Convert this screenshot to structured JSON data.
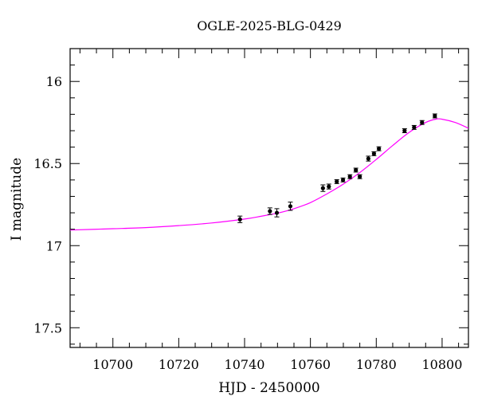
{
  "chart_data": {
    "type": "scatter",
    "title": "OGLE-2025-BLG-0429",
    "xlabel": "HJD - 2450000",
    "ylabel": "I magnitude",
    "xlim": [
      10687,
      10808
    ],
    "ylim": [
      17.62,
      15.8
    ],
    "y_inverted": true,
    "xticks": [
      10700,
      10720,
      10740,
      10760,
      10780,
      10800
    ],
    "xtick_labels": [
      "10700",
      "10720",
      "10740",
      "10760",
      "10780",
      "10800"
    ],
    "yticks": [
      16,
      16.5,
      17,
      17.5
    ],
    "ytick_labels": [
      "16",
      "16.5",
      "17",
      "17.5"
    ],
    "grid": false,
    "colors": {
      "points": "#000000",
      "model": "#ff00ff"
    },
    "series": [
      {
        "kind": "points",
        "x": [
          10738.6,
          10747.7,
          10749.8,
          10753.9,
          10763.8,
          10765.6,
          10768.0,
          10769.9,
          10772.0,
          10773.8,
          10775.0,
          10777.6,
          10779.3,
          10780.8,
          10788.6,
          10791.5,
          10793.9,
          10797.8
        ],
        "y": [
          16.84,
          16.79,
          16.8,
          16.76,
          16.65,
          16.64,
          16.61,
          16.6,
          16.58,
          16.54,
          16.58,
          16.47,
          16.44,
          16.41,
          16.3,
          16.28,
          16.25,
          16.21
        ],
        "err": [
          0.02,
          0.02,
          0.025,
          0.025,
          0.02,
          0.015,
          0.012,
          0.012,
          0.012,
          0.012,
          0.012,
          0.015,
          0.012,
          0.012,
          0.012,
          0.012,
          0.012,
          0.012
        ]
      },
      {
        "kind": "line",
        "x": [
          10687,
          10700,
          10710,
          10720,
          10730,
          10740,
          10745,
          10750,
          10755,
          10760,
          10765,
          10770,
          10775,
          10780,
          10785,
          10790,
          10795,
          10798,
          10800,
          10804,
          10808
        ],
        "y": [
          16.905,
          16.897,
          16.89,
          16.878,
          16.862,
          16.838,
          16.821,
          16.802,
          16.775,
          16.738,
          16.685,
          16.625,
          16.555,
          16.475,
          16.39,
          16.31,
          16.25,
          16.23,
          16.23,
          16.25,
          16.285
        ]
      }
    ]
  }
}
